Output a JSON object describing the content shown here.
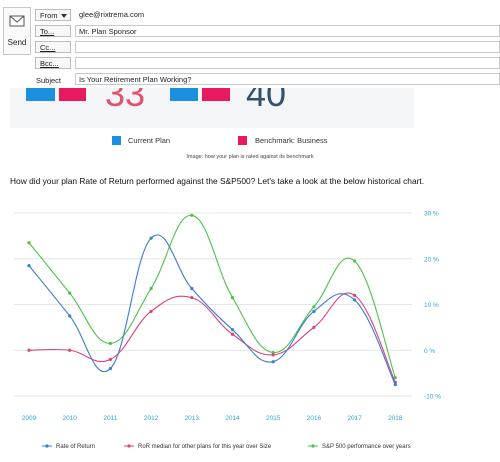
{
  "compose": {
    "send_label": "Send",
    "from_label": "From",
    "from_value": "glee@rixtrema.com",
    "to_label": "To...",
    "to_value": "Mr. Plan Sponsor",
    "cc_label": "Cc...",
    "cc_value": "",
    "bcc_label": "Bcc...",
    "bcc_value": "",
    "subject_label": "Subject",
    "subject_value": "Is Your Retirement Plan Working?"
  },
  "banner": {
    "score_left": "33",
    "score_right": "40",
    "colors": {
      "current": "#1b8fe0",
      "benchmark": "#e8195e"
    }
  },
  "legend_top": {
    "current": "Current Plan",
    "benchmark": "Benchmark: Business"
  },
  "caption": "Image: how your plan is rated against its benchmark",
  "question": "How did your plan Rate of Return performed against the S&P500? Let's take a look at the below historical chart.",
  "chart_data": {
    "type": "line",
    "categories": [
      "2009",
      "2010",
      "2011",
      "2012",
      "2013",
      "2014",
      "2015",
      "2016",
      "2017",
      "2018"
    ],
    "y_ticks": [
      "30 %",
      "20 %",
      "10 %",
      "0 %",
      "-10 %"
    ],
    "ylim": [
      -10,
      30
    ],
    "grid": true,
    "legend_position": "bottom",
    "series": [
      {
        "name": "Rate of Return",
        "color": "#3b7bd4",
        "values": [
          18.5,
          7.5,
          -4,
          24.5,
          13.5,
          4.5,
          -2.5,
          8.5,
          11,
          -7.5
        ]
      },
      {
        "name": "RoR median for other plans for this year over Size",
        "color": "#d9447e",
        "values": [
          0,
          0,
          -2,
          8.5,
          11.5,
          3.5,
          -1,
          5,
          12,
          -7
        ]
      },
      {
        "name": "S&P 500 performance over years",
        "color": "#4cc24b",
        "values": [
          23.5,
          12.5,
          1.5,
          13.5,
          29.5,
          11.5,
          -0.5,
          9.5,
          19.5,
          -6
        ]
      }
    ]
  }
}
